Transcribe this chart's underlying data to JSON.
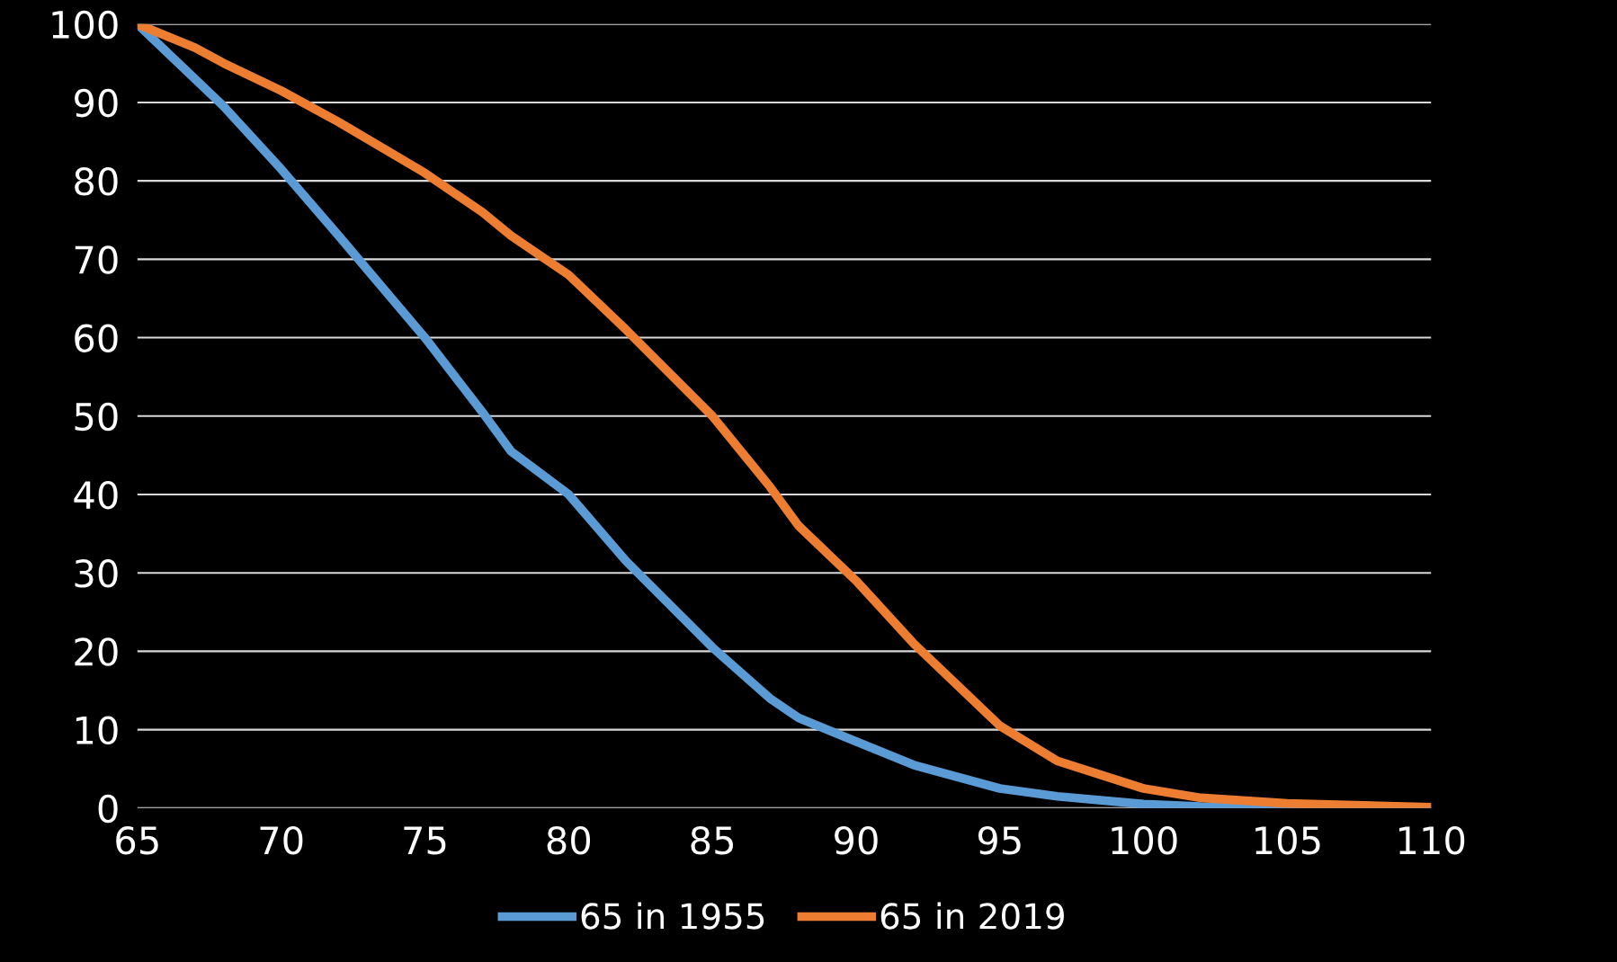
{
  "chart_data": {
    "type": "line",
    "x": [
      65,
      67,
      68,
      70,
      72,
      75,
      77,
      78,
      80,
      82,
      85,
      87,
      88,
      90,
      92,
      95,
      97,
      100,
      102,
      105,
      110
    ],
    "series": [
      {
        "name": "65 in 1955",
        "color": "#5b9bd5",
        "values": [
          100,
          93,
          89.5,
          81.5,
          73,
          60,
          50.5,
          45.5,
          40,
          31.5,
          20.5,
          14,
          11.5,
          8.5,
          5.5,
          2.5,
          1.5,
          0.5,
          0.2,
          0.1,
          0
        ]
      },
      {
        "name": "65 in 2019",
        "color": "#ed7d31",
        "values": [
          100,
          97,
          95,
          91.5,
          87.5,
          81,
          76,
          73,
          68,
          61,
          50,
          41,
          36,
          29,
          21,
          10.5,
          6,
          2.5,
          1.3,
          0.6,
          0.1
        ]
      }
    ],
    "xlim": [
      65,
      110
    ],
    "xticks": [
      65,
      70,
      75,
      80,
      85,
      90,
      95,
      100,
      105,
      110
    ],
    "ylim": [
      0,
      100
    ],
    "yticks": [
      0,
      10,
      20,
      30,
      40,
      50,
      60,
      70,
      80,
      90,
      100
    ],
    "grid": "y",
    "legend": "bottom",
    "line_style": "solid",
    "marker": "none"
  }
}
